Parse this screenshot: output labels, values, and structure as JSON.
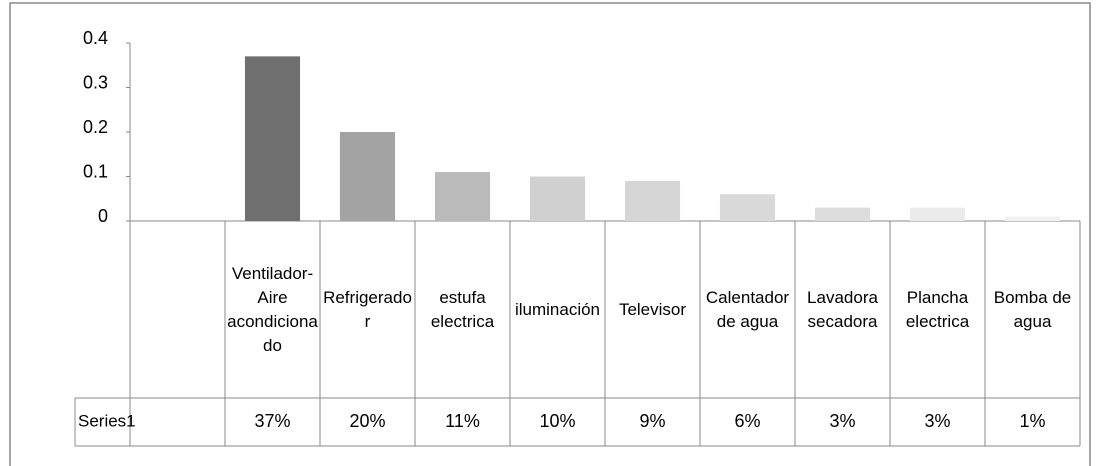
{
  "chart_data": {
    "type": "bar",
    "categories": [
      null,
      "Ventilador-Aire acondicionado",
      "Refrigerador",
      "estufa electrica",
      "iluminación",
      "Televisor",
      "Calentador de agua",
      "Lavadora secadora",
      "Plancha electrica",
      "Bomba de agua"
    ],
    "series": [
      {
        "name": "Series1",
        "values": [
          null,
          0.37,
          0.2,
          0.11,
          0.1,
          0.09,
          0.06,
          0.03,
          0.03,
          0.01
        ],
        "value_labels": [
          null,
          "37%",
          "20%",
          "11%",
          "10%",
          "9%",
          "6%",
          "3%",
          "3%",
          "1%"
        ],
        "colors": [
          null,
          "#6f6f6f",
          "#a3a3a3",
          "#bababa",
          "#d0d0d0",
          "#d5d5d5",
          "#d9d9d9",
          "#dddddd",
          "#ebebeb",
          "#f1f1f1"
        ]
      }
    ],
    "ylim": [
      0,
      0.4
    ],
    "yticks": [
      0,
      0.1,
      0.2,
      0.3,
      0.4
    ],
    "grid": false
  }
}
